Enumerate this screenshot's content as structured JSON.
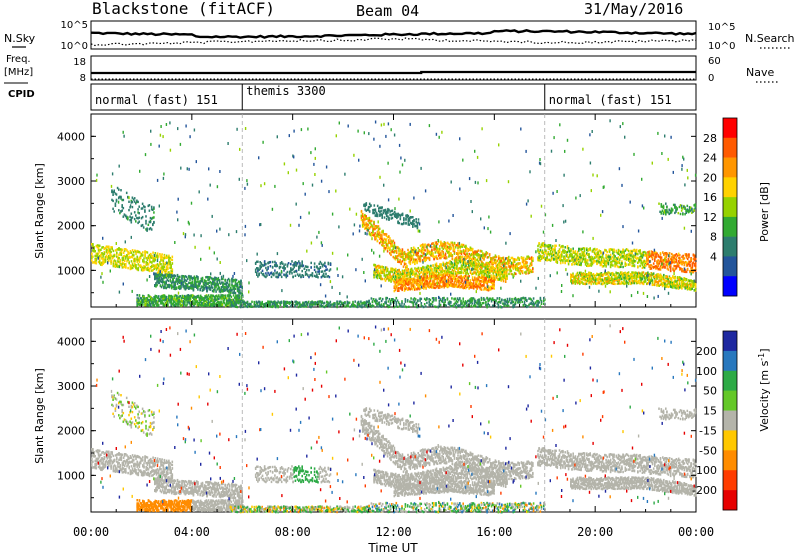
{
  "header": {
    "station": "Blackstone (fitACF)",
    "beam": "Beam 04",
    "date": "31/May/2016"
  },
  "left_labels": {
    "nsky": "N.Sky",
    "freq": "Freq.",
    "mhz": "[MHz]",
    "cpid": "CPID"
  },
  "right_labels": {
    "nsearch": "N.Search",
    "nave": "Nave"
  },
  "noise_panel": {
    "left_ticks": [
      "10^5",
      "10^0"
    ],
    "right_ticks": [
      "10^5",
      "10^0"
    ]
  },
  "freq_panel": {
    "left_ticks": [
      "18",
      "8"
    ],
    "right_ticks": [
      "60",
      "0"
    ]
  },
  "cpid_segments": [
    {
      "label": "normal (fast) 151",
      "start_h": 0
    },
    {
      "label": "themis 3300",
      "start_h": 6
    },
    {
      "label": "normal (fast) 151",
      "start_h": 18
    }
  ],
  "power_colorbar": {
    "label": "Power [dB]",
    "ticks": [
      "28",
      "24",
      "20",
      "16",
      "12",
      "8",
      "4"
    ],
    "colors": [
      "#ff0000",
      "#ff5a00",
      "#ff9600",
      "#ffd200",
      "#96d200",
      "#32aa32",
      "#2d7d6e",
      "#23559b",
      "#0000ff"
    ]
  },
  "velocity_colorbar": {
    "label": "Velocity [m s",
    "label_sup": "-1",
    "label_end": "]",
    "ticks": [
      "200",
      "100",
      "50",
      "15",
      "-15",
      "-50",
      "-100",
      "-200"
    ],
    "colors": [
      "#1e28a0",
      "#2878be",
      "#2daa46",
      "#64c828",
      "#b4b4aa",
      "#ffc800",
      "#ff8c00",
      "#ff3c00",
      "#e60000"
    ]
  },
  "chart_data": [
    {
      "type": "heatmap",
      "ylabel": "Slant Range [km]",
      "yticks": [
        "4000",
        "3000",
        "2000",
        "1000"
      ],
      "xticks": [
        "00:00",
        "04:00",
        "08:00",
        "12:00",
        "16:00",
        "20:00",
        "00:00"
      ],
      "xlim": [
        0,
        24
      ],
      "ylim": [
        180,
        4500
      ],
      "colorbar": "Power [dB]",
      "clim": [
        0,
        30
      ],
      "features": [
        {
          "t": [
            0,
            3
          ],
          "range": [
            1100,
            1600
          ],
          "value": 16
        },
        {
          "t": [
            1.5,
            6
          ],
          "range": [
            300,
            900
          ],
          "value": 8
        },
        {
          "t": [
            11,
            17.5
          ],
          "range": [
            800,
            1900
          ],
          "value": 18
        },
        {
          "t": [
            12,
            16
          ],
          "range": [
            600,
            900
          ],
          "value": 24
        },
        {
          "t": [
            18,
            24
          ],
          "range": [
            900,
            1700
          ],
          "value": 16
        },
        {
          "t": [
            22,
            24
          ],
          "range": [
            1000,
            1300
          ],
          "value": 28
        }
      ]
    },
    {
      "type": "heatmap",
      "ylabel": "Slant Range [km]",
      "yticks": [
        "4000",
        "3000",
        "2000",
        "1000"
      ],
      "xticks": [
        "00:00",
        "04:00",
        "08:00",
        "12:00",
        "16:00",
        "20:00",
        "00:00"
      ],
      "xlim": [
        0,
        24
      ],
      "ylim": [
        180,
        4500
      ],
      "xlabel": "Time UT",
      "colorbar": "Velocity [m s-1]",
      "clim": [
        -250,
        250
      ],
      "features": [
        {
          "t": [
            0,
            3
          ],
          "range": [
            1100,
            1600
          ],
          "value": 0
        },
        {
          "t": [
            11,
            18
          ],
          "range": [
            800,
            1900
          ],
          "value": 0
        },
        {
          "t": [
            18,
            24
          ],
          "range": [
            900,
            1700
          ],
          "value": 0
        },
        {
          "t": [
            2.5,
            4
          ],
          "range": [
            180,
            300
          ],
          "value": -60
        },
        {
          "t": [
            8,
            9
          ],
          "range": [
            900,
            1300
          ],
          "value": 60
        }
      ]
    }
  ]
}
